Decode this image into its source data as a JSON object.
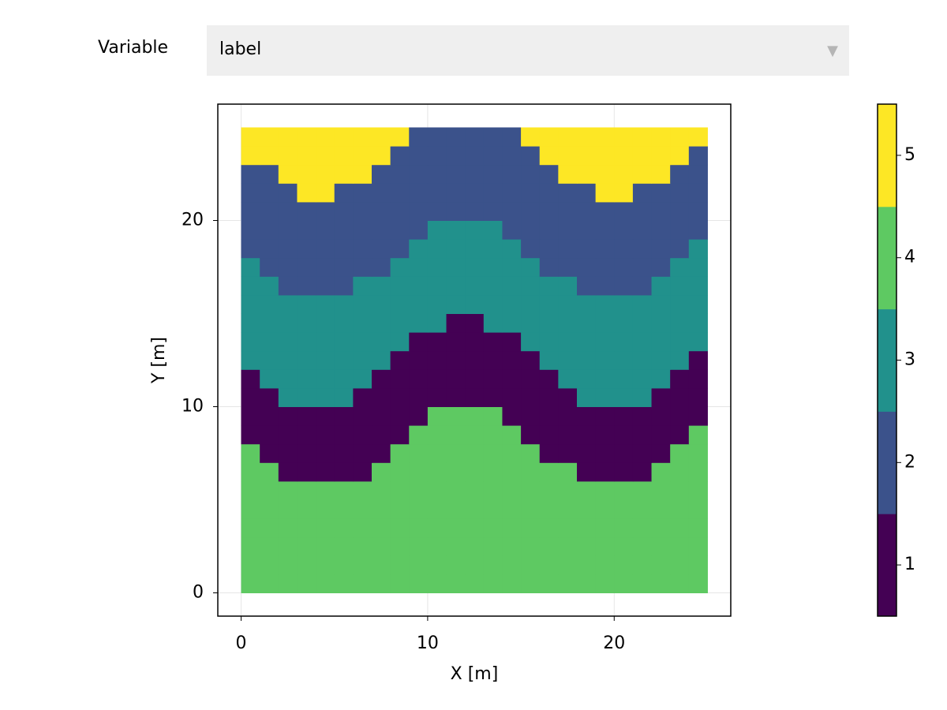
{
  "controls": {
    "label": "Variable",
    "selected": "label"
  },
  "chart_data": {
    "type": "heatmap",
    "x_label": "X [m]",
    "y_label": "Y [m]",
    "x_extent": [
      0,
      25
    ],
    "y_extent": [
      0,
      25
    ],
    "xlim": [
      -1.25,
      26.25
    ],
    "ylim": [
      -1.25,
      26.25
    ],
    "xticks": [
      0,
      10,
      20
    ],
    "yticks": [
      0,
      10,
      20
    ],
    "grid": true,
    "z": [
      [
        4,
        4,
        4,
        4,
        4,
        4,
        4,
        4,
        4,
        4,
        4,
        4,
        4,
        4,
        4,
        4,
        4,
        4,
        4,
        4,
        4,
        4,
        4,
        4,
        4
      ],
      [
        4,
        4,
        4,
        4,
        4,
        4,
        4,
        4,
        4,
        4,
        4,
        4,
        4,
        4,
        4,
        4,
        4,
        4,
        4,
        4,
        4,
        4,
        4,
        4,
        4
      ],
      [
        4,
        4,
        4,
        4,
        4,
        4,
        4,
        4,
        4,
        4,
        4,
        4,
        4,
        4,
        4,
        4,
        4,
        4,
        4,
        4,
        4,
        4,
        4,
        4,
        4
      ],
      [
        4,
        4,
        4,
        4,
        4,
        4,
        4,
        4,
        4,
        4,
        4,
        4,
        4,
        4,
        4,
        4,
        4,
        4,
        4,
        4,
        4,
        4,
        4,
        4,
        4
      ],
      [
        4,
        4,
        4,
        4,
        4,
        4,
        4,
        4,
        4,
        4,
        4,
        4,
        4,
        4,
        4,
        4,
        4,
        4,
        4,
        4,
        4,
        4,
        4,
        4,
        4
      ],
      [
        4,
        4,
        4,
        4,
        4,
        4,
        4,
        4,
        4,
        4,
        4,
        4,
        4,
        4,
        4,
        4,
        4,
        4,
        4,
        4,
        4,
        4,
        4,
        4,
        4
      ],
      [
        4,
        4,
        1,
        1,
        1,
        1,
        1,
        4,
        4,
        4,
        4,
        4,
        4,
        4,
        4,
        4,
        4,
        4,
        1,
        1,
        1,
        1,
        4,
        4,
        4
      ],
      [
        4,
        1,
        1,
        1,
        1,
        1,
        1,
        1,
        4,
        4,
        4,
        4,
        4,
        4,
        4,
        4,
        1,
        1,
        1,
        1,
        1,
        1,
        1,
        4,
        4
      ],
      [
        1,
        1,
        1,
        1,
        1,
        1,
        1,
        1,
        1,
        4,
        4,
        4,
        4,
        4,
        4,
        1,
        1,
        1,
        1,
        1,
        1,
        1,
        1,
        1,
        4
      ],
      [
        1,
        1,
        1,
        1,
        1,
        1,
        1,
        1,
        1,
        1,
        4,
        4,
        4,
        4,
        1,
        1,
        1,
        1,
        1,
        1,
        1,
        1,
        1,
        1,
        1
      ],
      [
        1,
        1,
        3,
        3,
        3,
        3,
        1,
        1,
        1,
        1,
        1,
        1,
        1,
        1,
        1,
        1,
        1,
        1,
        3,
        3,
        3,
        3,
        1,
        1,
        1
      ],
      [
        1,
        3,
        3,
        3,
        3,
        3,
        3,
        1,
        1,
        1,
        1,
        1,
        1,
        1,
        1,
        1,
        1,
        3,
        3,
        3,
        3,
        3,
        3,
        1,
        1
      ],
      [
        3,
        3,
        3,
        3,
        3,
        3,
        3,
        3,
        1,
        1,
        1,
        1,
        1,
        1,
        1,
        1,
        3,
        3,
        3,
        3,
        3,
        3,
        3,
        3,
        1
      ],
      [
        3,
        3,
        3,
        3,
        3,
        3,
        3,
        3,
        3,
        1,
        1,
        1,
        1,
        1,
        1,
        3,
        3,
        3,
        3,
        3,
        3,
        3,
        3,
        3,
        3
      ],
      [
        3,
        3,
        3,
        3,
        3,
        3,
        3,
        3,
        3,
        3,
        3,
        1,
        1,
        3,
        3,
        3,
        3,
        3,
        3,
        3,
        3,
        3,
        3,
        3,
        3
      ],
      [
        3,
        3,
        3,
        3,
        3,
        3,
        3,
        3,
        3,
        3,
        3,
        3,
        3,
        3,
        3,
        3,
        3,
        3,
        3,
        3,
        3,
        3,
        3,
        3,
        3
      ],
      [
        3,
        3,
        2,
        2,
        2,
        2,
        3,
        3,
        3,
        3,
        3,
        3,
        3,
        3,
        3,
        3,
        3,
        3,
        2,
        2,
        2,
        2,
        3,
        3,
        3
      ],
      [
        3,
        2,
        2,
        2,
        2,
        2,
        2,
        2,
        3,
        3,
        3,
        3,
        3,
        3,
        3,
        3,
        2,
        2,
        2,
        2,
        2,
        2,
        2,
        3,
        3
      ],
      [
        2,
        2,
        2,
        2,
        2,
        2,
        2,
        2,
        2,
        3,
        3,
        3,
        3,
        3,
        3,
        2,
        2,
        2,
        2,
        2,
        2,
        2,
        2,
        2,
        3
      ],
      [
        2,
        2,
        2,
        2,
        2,
        2,
        2,
        2,
        2,
        2,
        3,
        3,
        3,
        3,
        2,
        2,
        2,
        2,
        2,
        2,
        2,
        2,
        2,
        2,
        2
      ],
      [
        2,
        2,
        2,
        2,
        2,
        2,
        2,
        2,
        2,
        2,
        2,
        2,
        2,
        2,
        2,
        2,
        2,
        2,
        2,
        2,
        2,
        2,
        2,
        2,
        2
      ],
      [
        2,
        2,
        2,
        5,
        5,
        2,
        2,
        2,
        2,
        2,
        2,
        2,
        2,
        2,
        2,
        2,
        2,
        2,
        2,
        5,
        5,
        2,
        2,
        2,
        2
      ],
      [
        2,
        2,
        5,
        5,
        5,
        5,
        5,
        2,
        2,
        2,
        2,
        2,
        2,
        2,
        2,
        2,
        2,
        5,
        5,
        5,
        5,
        5,
        5,
        2,
        2
      ],
      [
        5,
        5,
        5,
        5,
        5,
        5,
        5,
        5,
        2,
        2,
        2,
        2,
        2,
        2,
        2,
        2,
        5,
        5,
        5,
        5,
        5,
        5,
        5,
        5,
        2
      ],
      [
        5,
        5,
        5,
        5,
        5,
        5,
        5,
        5,
        5,
        2,
        2,
        2,
        2,
        2,
        2,
        5,
        5,
        5,
        5,
        5,
        5,
        5,
        5,
        5,
        5
      ]
    ],
    "colorbar": {
      "colors": [
        "#440154",
        "#3b528b",
        "#21918c",
        "#5ec962",
        "#fde725"
      ],
      "lim": [
        0.5,
        5.5
      ],
      "ticks": [
        1,
        2,
        3,
        4,
        5
      ]
    }
  }
}
